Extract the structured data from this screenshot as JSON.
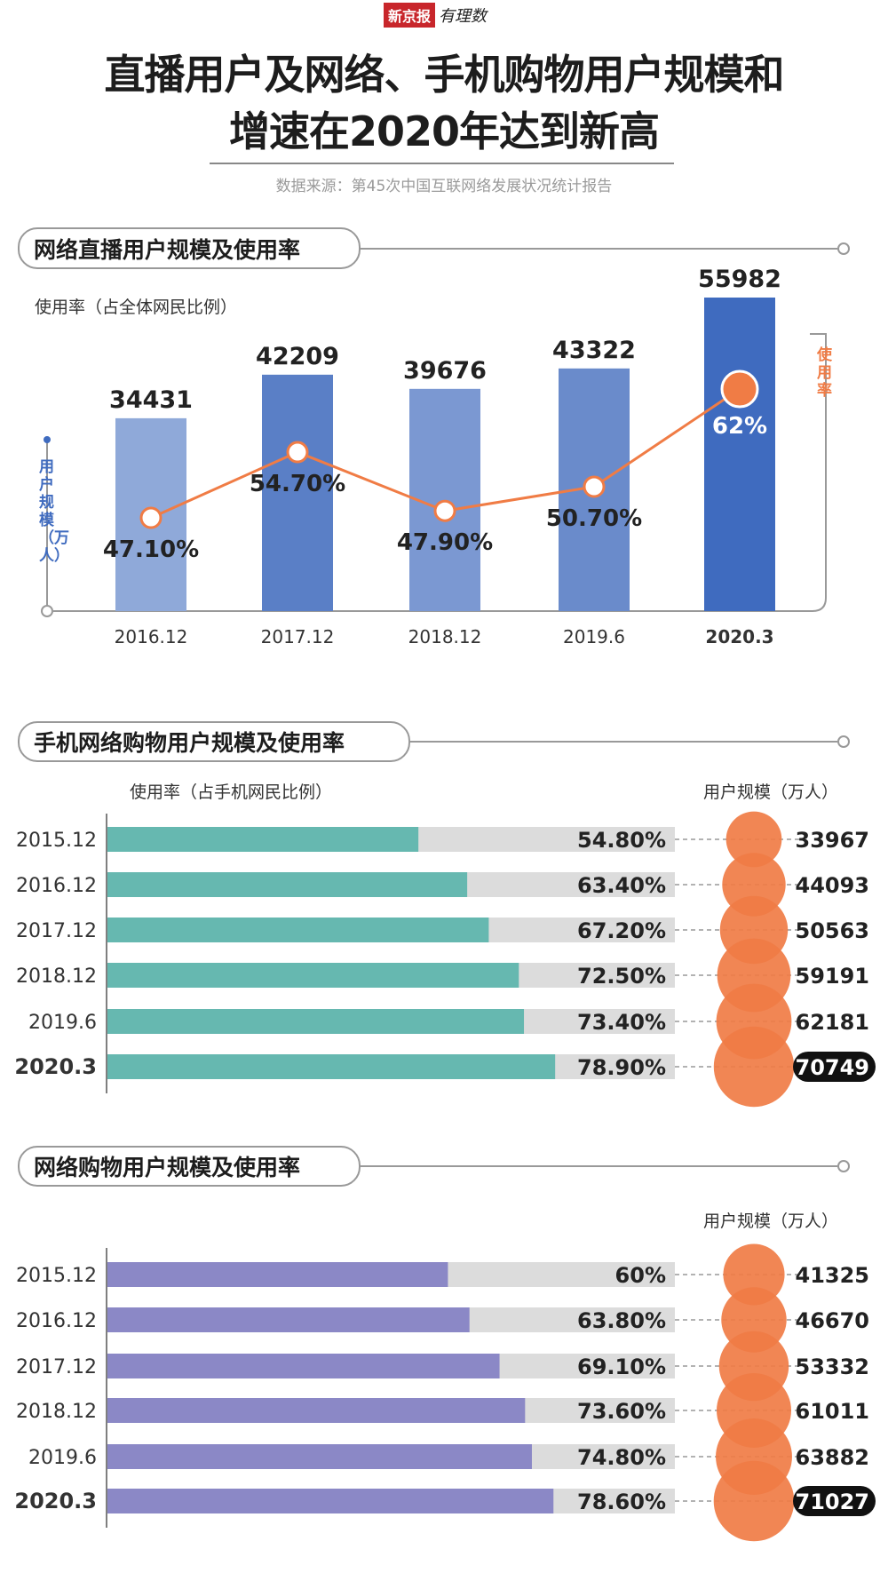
{
  "logo": {
    "brand": "新京报",
    "column": "有理数"
  },
  "title": {
    "line1": "直播用户及网络、手机购物用户规模和",
    "line2": "增速在2020年达到新高"
  },
  "source": "数据来源：第45次中国互联网络发展状况统计报告",
  "colors": {
    "orange": "#f07c45",
    "teal": "#66b8b0",
    "purple": "#8b88c6",
    "track": "#dcdcdc",
    "blue_dark": "#3f6bbf"
  },
  "chart_data": [
    {
      "type": "bar+line",
      "title": "网络直播用户规模及使用率",
      "ylabel_left": "用户规模（万人）",
      "ylabel_right": "使用率",
      "rate_label": "使用率（占全体网民比例）",
      "categories": [
        "2016.12",
        "2017.12",
        "2018.12",
        "2019.6",
        "2020.3"
      ],
      "bar_colors": [
        "#8fa9d9",
        "#5a7fc6",
        "#7b98d2",
        "#6a8bcb",
        "#3f6bbf"
      ],
      "series": [
        {
          "name": "用户规模（万人）",
          "values": [
            34431,
            42209,
            39676,
            43322,
            55982
          ]
        },
        {
          "name": "使用率",
          "values": [
            47.1,
            54.7,
            47.9,
            50.7,
            62
          ],
          "labels": [
            "47.10%",
            "54.70%",
            "47.90%",
            "50.70%",
            "62%"
          ]
        }
      ]
    },
    {
      "type": "bar",
      "orientation": "horizontal",
      "title": "手机网络购物用户规模及使用率",
      "rate_label": "使用率（占手机网民比例）",
      "size_label": "用户规模（万人）",
      "categories": [
        "2015.12",
        "2016.12",
        "2017.12",
        "2018.12",
        "2019.6",
        "2020.3"
      ],
      "series": [
        {
          "name": "使用率",
          "values": [
            54.8,
            63.4,
            67.2,
            72.5,
            73.4,
            78.9
          ],
          "labels": [
            "54.80%",
            "63.40%",
            "67.20%",
            "72.50%",
            "73.40%",
            "78.90%"
          ]
        },
        {
          "name": "用户规模（万人）",
          "values": [
            33967,
            44093,
            50563,
            59191,
            62181,
            70749
          ]
        }
      ],
      "xlim": [
        0,
        100
      ]
    },
    {
      "type": "bar",
      "orientation": "horizontal",
      "title": "网络购物用户规模及使用率",
      "size_label": "用户规模（万人）",
      "categories": [
        "2015.12",
        "2016.12",
        "2017.12",
        "2018.12",
        "2019.6",
        "2020.3"
      ],
      "series": [
        {
          "name": "使用率",
          "values": [
            60,
            63.8,
            69.1,
            73.6,
            74.8,
            78.6
          ],
          "labels": [
            "60%",
            "63.80%",
            "69.10%",
            "73.60%",
            "74.80%",
            "78.60%"
          ]
        },
        {
          "name": "用户规模（万人）",
          "values": [
            41325,
            46670,
            53332,
            61011,
            63882,
            71027
          ]
        }
      ],
      "xlim": [
        0,
        100
      ]
    }
  ]
}
